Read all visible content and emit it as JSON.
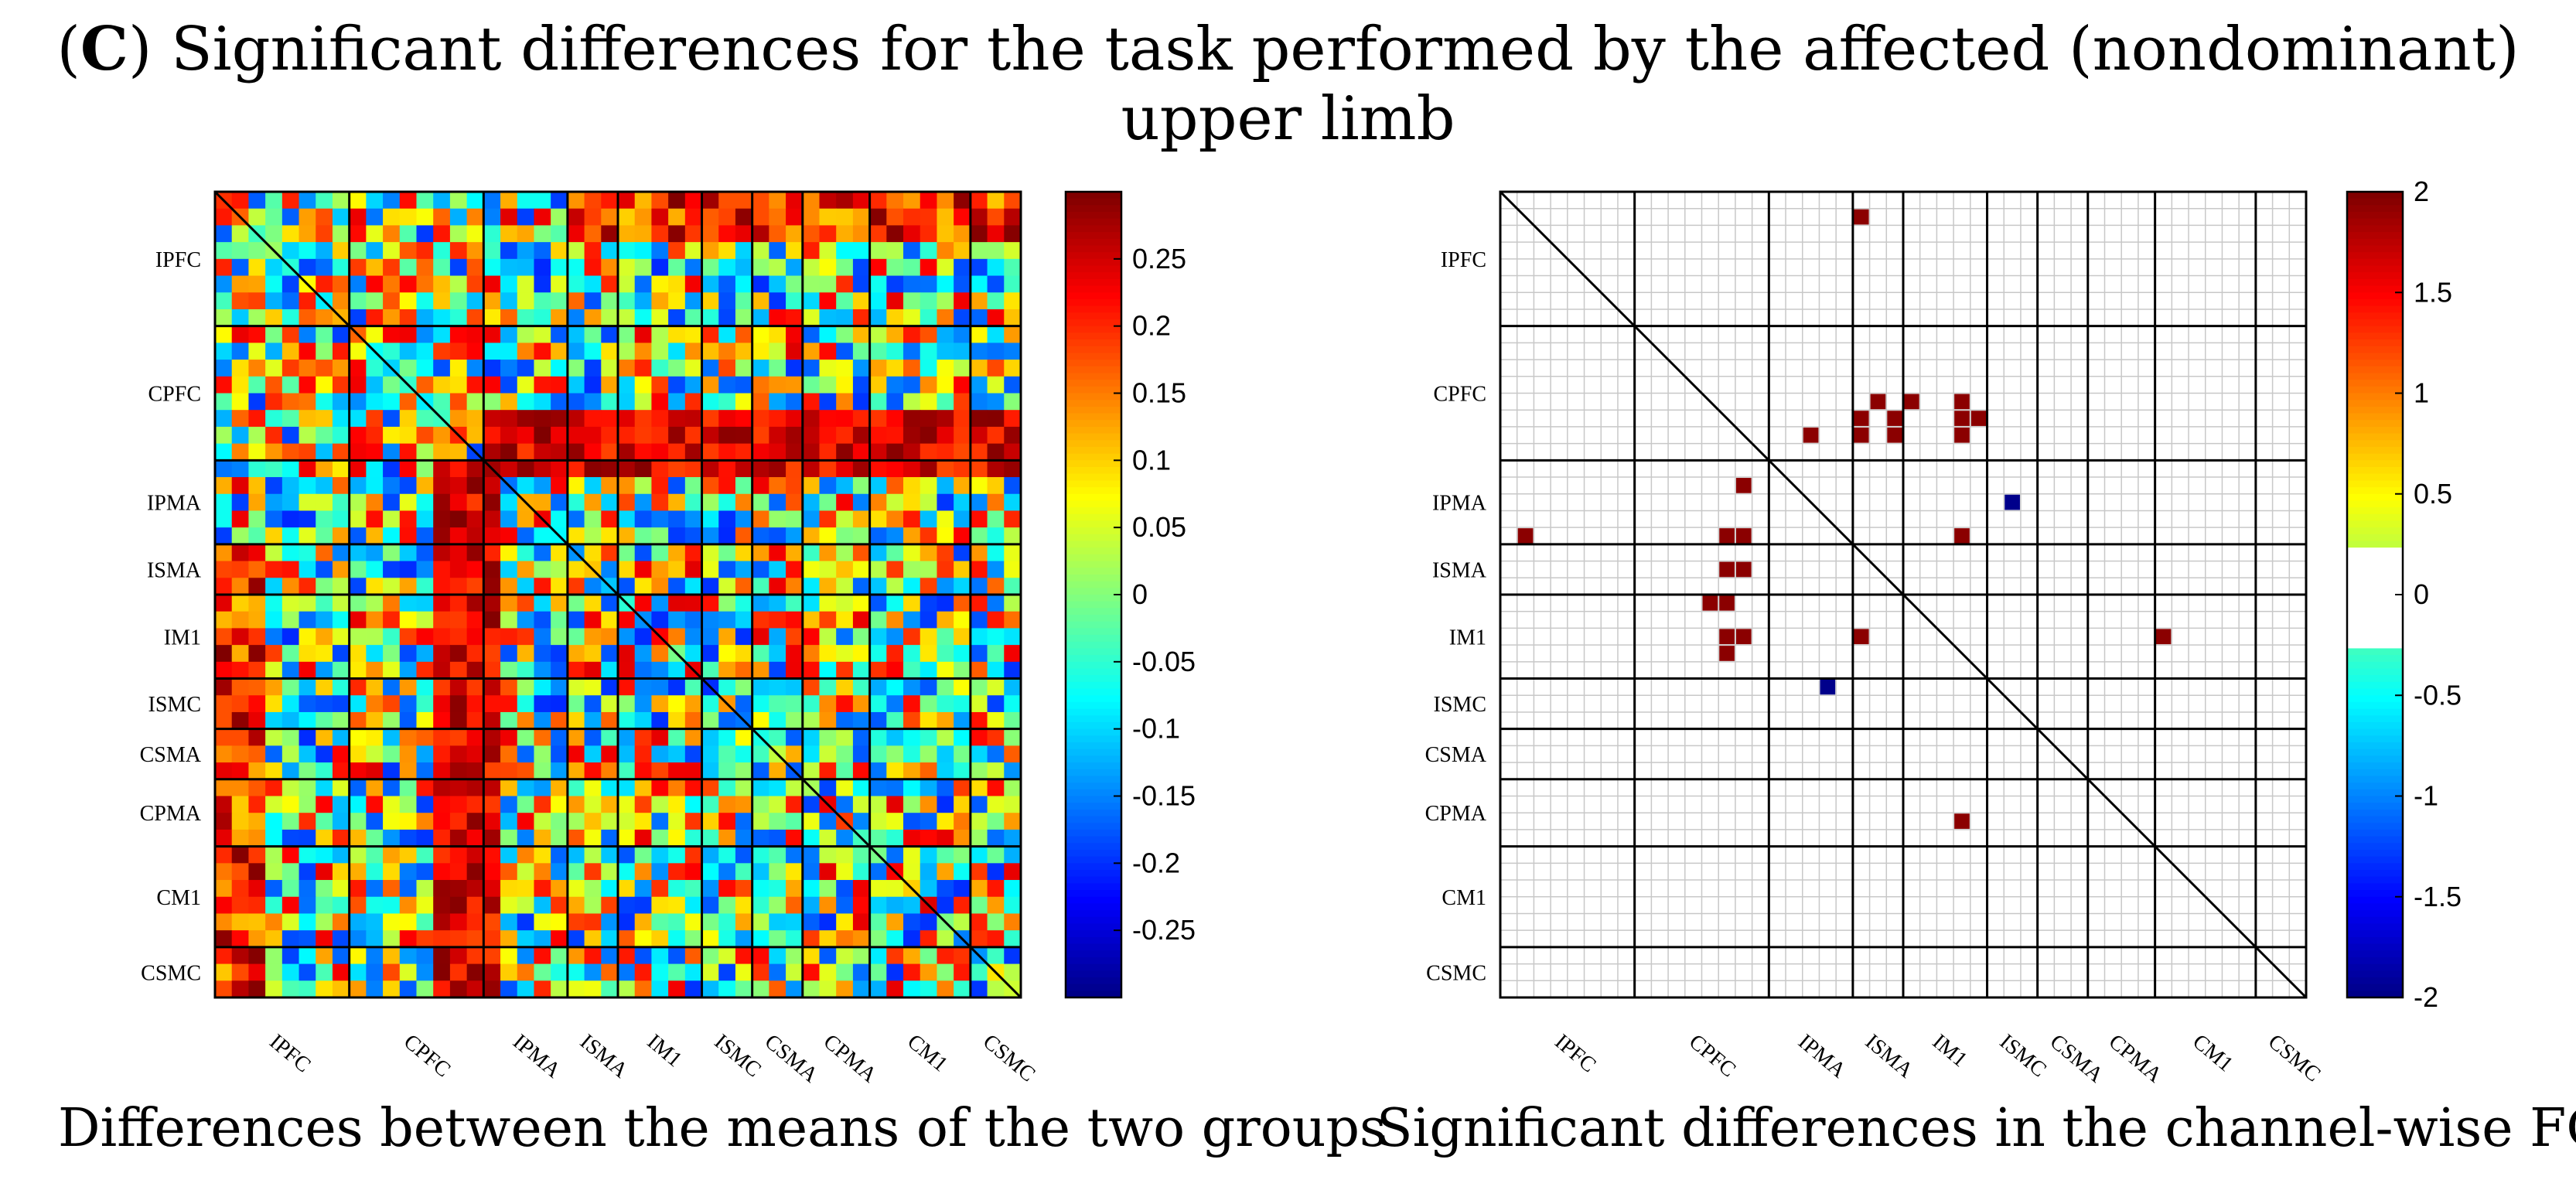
{
  "figure": {
    "panel_letter": "C",
    "title": "Significant differences for the task performed by the affected (nondominant) upper limb",
    "caption_left": "Differences between the means of the two groups",
    "caption_right": "Significant differences in the channel-wise FC"
  },
  "chart_data": [
    {
      "type": "heatmap",
      "title": "Differences between the means of the two groups",
      "regions": [
        "IPFC",
        "CPFC",
        "IPMA",
        "ISMA",
        "IM1",
        "ISMC",
        "CSMA",
        "CPMA",
        "CM1",
        "CSMC"
      ],
      "region_channels": [
        8,
        8,
        5,
        3,
        5,
        3,
        3,
        4,
        6,
        3
      ],
      "n_channels": 48,
      "colorbar": {
        "ticks": [
          "0.25",
          "0.2",
          "0.15",
          "0.1",
          "0.05",
          "0",
          "-0.05",
          "-0.1",
          "-0.15",
          "-0.2",
          "-0.25"
        ],
        "tick_values": [
          0.25,
          0.2,
          0.15,
          0.1,
          0.05,
          0,
          -0.05,
          -0.1,
          -0.15,
          -0.2,
          -0.25
        ],
        "range": [
          -0.3,
          0.3
        ],
        "colormap": "jet"
      },
      "values": "48x48 symmetric matrix of mean-difference values (approximate rendering; strong positive band on rows/cols IPMA-CSMC vs channels 13-16)"
    },
    {
      "type": "heatmap",
      "title": "Significant differences in the channel-wise FC",
      "regions": [
        "IPFC",
        "CPFC",
        "IPMA",
        "ISMA",
        "IM1",
        "ISMC",
        "CSMA",
        "CPMA",
        "CM1",
        "CSMC"
      ],
      "region_channels": [
        8,
        8,
        5,
        3,
        5,
        3,
        3,
        4,
        6,
        3
      ],
      "n_channels": 48,
      "colorbar": {
        "ticks": [
          "2",
          "1.5",
          "1",
          "0.5",
          "0",
          "-0.5",
          "-1",
          "-1.5",
          "-2"
        ],
        "tick_values": [
          2,
          1.5,
          1,
          0.5,
          0,
          -0.5,
          -1,
          -1.5,
          -2
        ],
        "range": [
          -2,
          2
        ],
        "colormap": "jet-white"
      },
      "significant_cells": [
        {
          "row": 1,
          "col": 21,
          "value": 2
        },
        {
          "row": 12,
          "col": 22,
          "value": 2
        },
        {
          "row": 12,
          "col": 24,
          "value": 2
        },
        {
          "row": 12,
          "col": 27,
          "value": 2
        },
        {
          "row": 13,
          "col": 21,
          "value": 2
        },
        {
          "row": 13,
          "col": 23,
          "value": 2
        },
        {
          "row": 13,
          "col": 27,
          "value": 2
        },
        {
          "row": 13,
          "col": 28,
          "value": 2
        },
        {
          "row": 14,
          "col": 18,
          "value": 2
        },
        {
          "row": 14,
          "col": 21,
          "value": 2
        },
        {
          "row": 14,
          "col": 23,
          "value": 2
        },
        {
          "row": 14,
          "col": 27,
          "value": 2
        },
        {
          "row": 17,
          "col": 14,
          "value": 2
        },
        {
          "row": 18,
          "col": 30,
          "value": -2
        },
        {
          "row": 20,
          "col": 1,
          "value": 2
        },
        {
          "row": 20,
          "col": 13,
          "value": 2
        },
        {
          "row": 20,
          "col": 14,
          "value": 2
        },
        {
          "row": 20,
          "col": 27,
          "value": 2
        },
        {
          "row": 22,
          "col": 13,
          "value": 2
        },
        {
          "row": 22,
          "col": 14,
          "value": 2
        },
        {
          "row": 24,
          "col": 12,
          "value": 2
        },
        {
          "row": 24,
          "col": 13,
          "value": 2
        },
        {
          "row": 26,
          "col": 13,
          "value": 2
        },
        {
          "row": 26,
          "col": 14,
          "value": 2
        },
        {
          "row": 26,
          "col": 21,
          "value": 2
        },
        {
          "row": 26,
          "col": 39,
          "value": 2
        },
        {
          "row": 27,
          "col": 13,
          "value": 2
        },
        {
          "row": 29,
          "col": 19,
          "value": -2
        },
        {
          "row": 37,
          "col": 27,
          "value": 2
        }
      ]
    }
  ]
}
